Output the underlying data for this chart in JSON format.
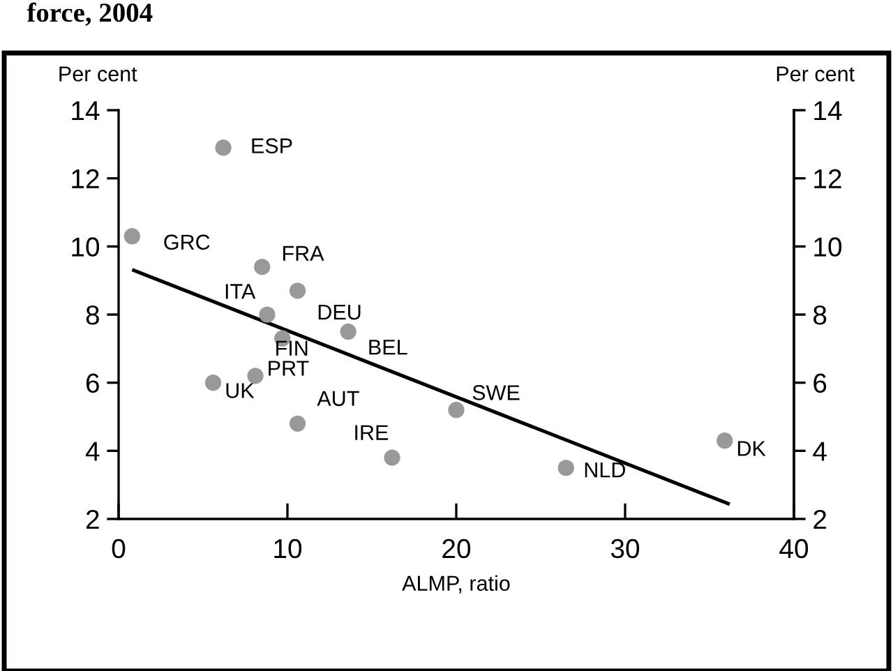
{
  "chart_data": {
    "type": "scatter",
    "title": "force, 2004",
    "xlabel": "ALMP, ratio",
    "ylabel": "Per cent",
    "y2label": "Per cent",
    "x": [
      6.2,
      0.8,
      8.5,
      10.6,
      8.8,
      9.7,
      13.6,
      8.1,
      5.6,
      10.6,
      16.2,
      20.0,
      26.5,
      35.9
    ],
    "series": [
      {
        "color": "#999999",
        "values": [
          12.9,
          10.3,
          9.4,
          8.7,
          8.0,
          7.3,
          7.5,
          6.2,
          6.0,
          4.8,
          3.8,
          5.2,
          3.5,
          4.3
        ],
        "marker": "circle"
      },
      {
        "type": "line",
        "color": "#000000",
        "x": [
          0.9,
          36.1
        ],
        "values": [
          9.3,
          2.45
        ],
        "marker": "none",
        "line_style": "solid"
      }
    ],
    "annotations": [
      {
        "text": "ESP",
        "x": 6.2,
        "y": 12.9
      },
      {
        "text": "GRC",
        "x": 0.8,
        "y": 10.3
      },
      {
        "text": "FRA",
        "x": 8.5,
        "y": 9.4
      },
      {
        "text": "DEU",
        "x": 10.6,
        "y": 8.7
      },
      {
        "text": "ITA",
        "x": 8.8,
        "y": 8.0
      },
      {
        "text": "FIN",
        "x": 9.7,
        "y": 7.3
      },
      {
        "text": "BEL",
        "x": 13.6,
        "y": 7.5
      },
      {
        "text": "PRT",
        "x": 8.1,
        "y": 6.2
      },
      {
        "text": "UK",
        "x": 5.6,
        "y": 6.0
      },
      {
        "text": "AUT",
        "x": 10.6,
        "y": 4.8
      },
      {
        "text": "IRE",
        "x": 16.2,
        "y": 3.8
      },
      {
        "text": "SWE",
        "x": 20.0,
        "y": 5.2
      },
      {
        "text": "NLD",
        "x": 26.5,
        "y": 3.5
      },
      {
        "text": "DK",
        "x": 35.9,
        "y": 4.3
      }
    ],
    "xlim": [
      0,
      40
    ],
    "xticks": [
      0,
      10,
      20,
      30,
      40
    ],
    "ylim": [
      2,
      14
    ],
    "yticks": [
      2,
      4,
      6,
      8,
      10,
      12,
      14
    ],
    "y2lim": [
      2,
      14
    ],
    "y2ticks": [
      2,
      4,
      6,
      8,
      10,
      12,
      14
    ],
    "grid": false,
    "legend": false
  }
}
